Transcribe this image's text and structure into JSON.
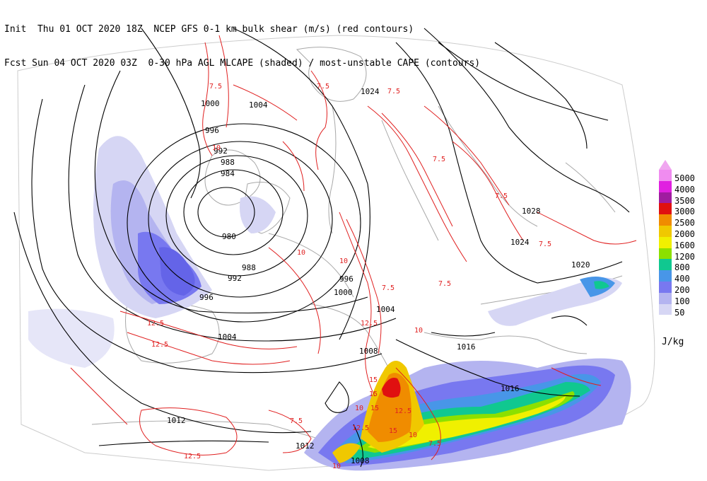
{
  "header": {
    "line1": "Init  Thu 01 OCT 2020 18Z  NCEP GFS 0-1 km bulk shear (m/s) (red contours)",
    "line2": "Fcst Sun 04 OCT 2020 03Z  0-30 hPa AGL MLCAPE (shaded) / most-unstable CAPE (contours)"
  },
  "legend": {
    "unit": "J/kg",
    "levels": [
      {
        "label": "5000",
        "color": "#f08cf0"
      },
      {
        "label": "4000",
        "color": "#e020e0"
      },
      {
        "label": "3500",
        "color": "#a01ca0"
      },
      {
        "label": "3000",
        "color": "#e01010"
      },
      {
        "label": "2500",
        "color": "#f08c00"
      },
      {
        "label": "2000",
        "color": "#f0c800"
      },
      {
        "label": "1600",
        "color": "#f0f000"
      },
      {
        "label": "1200",
        "color": "#8ce000"
      },
      {
        "label": "800",
        "color": "#10c890"
      },
      {
        "label": "400",
        "color": "#4896e8"
      },
      {
        "label": "200",
        "color": "#7878f0"
      },
      {
        "label": "100",
        "color": "#b4b4f0"
      },
      {
        "label": "50",
        "color": "#d6d6f4"
      }
    ]
  },
  "isobar_labels": [
    "1000",
    "1004",
    "996",
    "992",
    "988",
    "984",
    "980",
    "988",
    "992",
    "996",
    "1000",
    "1004",
    "1004",
    "1008",
    "1012",
    "1012",
    "1008",
    "1016",
    "1016",
    "1020",
    "1024",
    "1028",
    "1024",
    "996"
  ],
  "shear_labels": [
    "10",
    "7.5",
    "7.5",
    "7.5",
    "7.5",
    "7.5",
    "10",
    "12.5",
    "15",
    "12.5",
    "15",
    "10",
    "15",
    "12.5",
    "15",
    "10",
    "7.5",
    "12.5",
    "10",
    "7.5",
    "12.5",
    "10",
    "7.5",
    "7.5",
    "7.5",
    "10",
    "12.5"
  ]
}
